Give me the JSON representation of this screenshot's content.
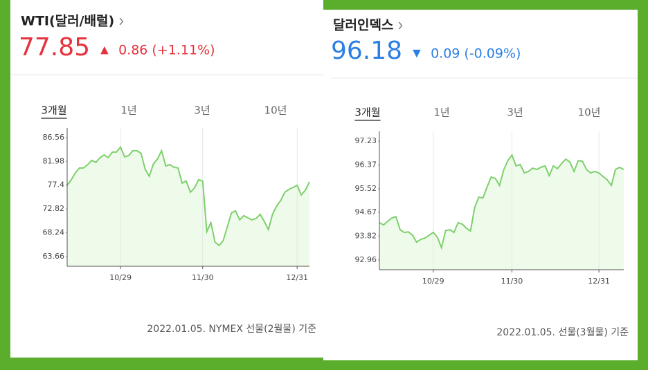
{
  "chart_data": [
    {
      "type": "area",
      "title": "WTI(달러/배럴)",
      "price": "77.85",
      "arrow": "▲",
      "change": "0.86 (+1.11%)",
      "trend_color": "#e5323c",
      "tabs": [
        "3개월",
        "1년",
        "3년",
        "10년"
      ],
      "footnote": "2022.01.05. NYMEX 선물(2월물) 기준",
      "color": "#7dd06b",
      "fill": "#eefbea",
      "categories": [
        null,
        null,
        null,
        null,
        null,
        null,
        null,
        null,
        null,
        null,
        null,
        null,
        null,
        "10/29",
        null,
        null,
        null,
        null,
        null,
        null,
        null,
        null,
        null,
        null,
        null,
        null,
        null,
        null,
        null,
        null,
        null,
        null,
        null,
        "11/30",
        null,
        null,
        null,
        null,
        null,
        null,
        null,
        null,
        null,
        null,
        null,
        null,
        null,
        null,
        null,
        null,
        null,
        null,
        null,
        null,
        null,
        null,
        "12/31",
        null,
        null,
        null
      ],
      "values": [
        77.38,
        78.44,
        79.77,
        80.7,
        80.7,
        81.37,
        82.17,
        81.77,
        82.7,
        83.23,
        82.7,
        83.76,
        83.76,
        84.7,
        82.83,
        83.1,
        84.03,
        84.03,
        83.5,
        80.44,
        79.11,
        81.5,
        82.43,
        84.03,
        81.1,
        81.37,
        80.84,
        80.7,
        77.78,
        78.18,
        76.04,
        76.84,
        78.44,
        78.18,
        68.46,
        70.19,
        66.46,
        65.8,
        66.73,
        69.39,
        72.05,
        72.45,
        70.72,
        71.52,
        71.12,
        70.72,
        70.99,
        71.79,
        70.45,
        68.86,
        71.79,
        73.38,
        74.45,
        76.04,
        76.58,
        76.98,
        77.38,
        75.51,
        76.44,
        78.04
      ],
      "ylim": [
        61.8,
        88.4
      ],
      "yticks": [
        63.66,
        68.24,
        72.82,
        77.4,
        81.98,
        86.56
      ]
    },
    {
      "type": "area",
      "title": "달러인덱스",
      "price": "96.18",
      "arrow": "▼",
      "change": "0.09 (-0.09%)",
      "trend_color": "#2b7fe3",
      "tabs": [
        "3개월",
        "1년",
        "3년",
        "10년"
      ],
      "footnote": "2022.01.05. 선물(3월물) 기준",
      "color": "#7dd06b",
      "fill": "#eefbea",
      "categories": [
        null,
        null,
        null,
        null,
        null,
        null,
        null,
        null,
        null,
        null,
        null,
        null,
        null,
        "10/29",
        null,
        null,
        null,
        null,
        null,
        null,
        null,
        null,
        null,
        null,
        null,
        null,
        null,
        null,
        null,
        null,
        null,
        null,
        "11/30",
        null,
        null,
        null,
        null,
        null,
        null,
        null,
        null,
        null,
        null,
        null,
        null,
        null,
        null,
        null,
        null,
        null,
        null,
        null,
        null,
        "12/31",
        null,
        null,
        null,
        null,
        null,
        null
      ],
      "values": [
        94.3,
        94.22,
        94.35,
        94.47,
        94.52,
        94.05,
        93.95,
        93.97,
        93.85,
        93.6,
        93.7,
        93.75,
        93.85,
        93.95,
        93.78,
        93.4,
        94.02,
        94.05,
        93.95,
        94.3,
        94.25,
        94.1,
        94.0,
        94.84,
        95.22,
        95.19,
        95.59,
        95.94,
        95.89,
        95.64,
        96.19,
        96.53,
        96.73,
        96.34,
        96.39,
        96.09,
        96.14,
        96.26,
        96.21,
        96.29,
        96.34,
        95.99,
        96.34,
        96.24,
        96.43,
        96.58,
        96.48,
        96.14,
        96.53,
        96.51,
        96.21,
        96.09,
        96.14,
        96.09,
        95.96,
        95.84,
        95.64,
        96.21,
        96.29,
        96.21
      ],
      "ylim": [
        92.61,
        97.58
      ],
      "yticks": [
        92.96,
        93.82,
        94.67,
        95.52,
        96.37,
        97.23
      ]
    }
  ]
}
